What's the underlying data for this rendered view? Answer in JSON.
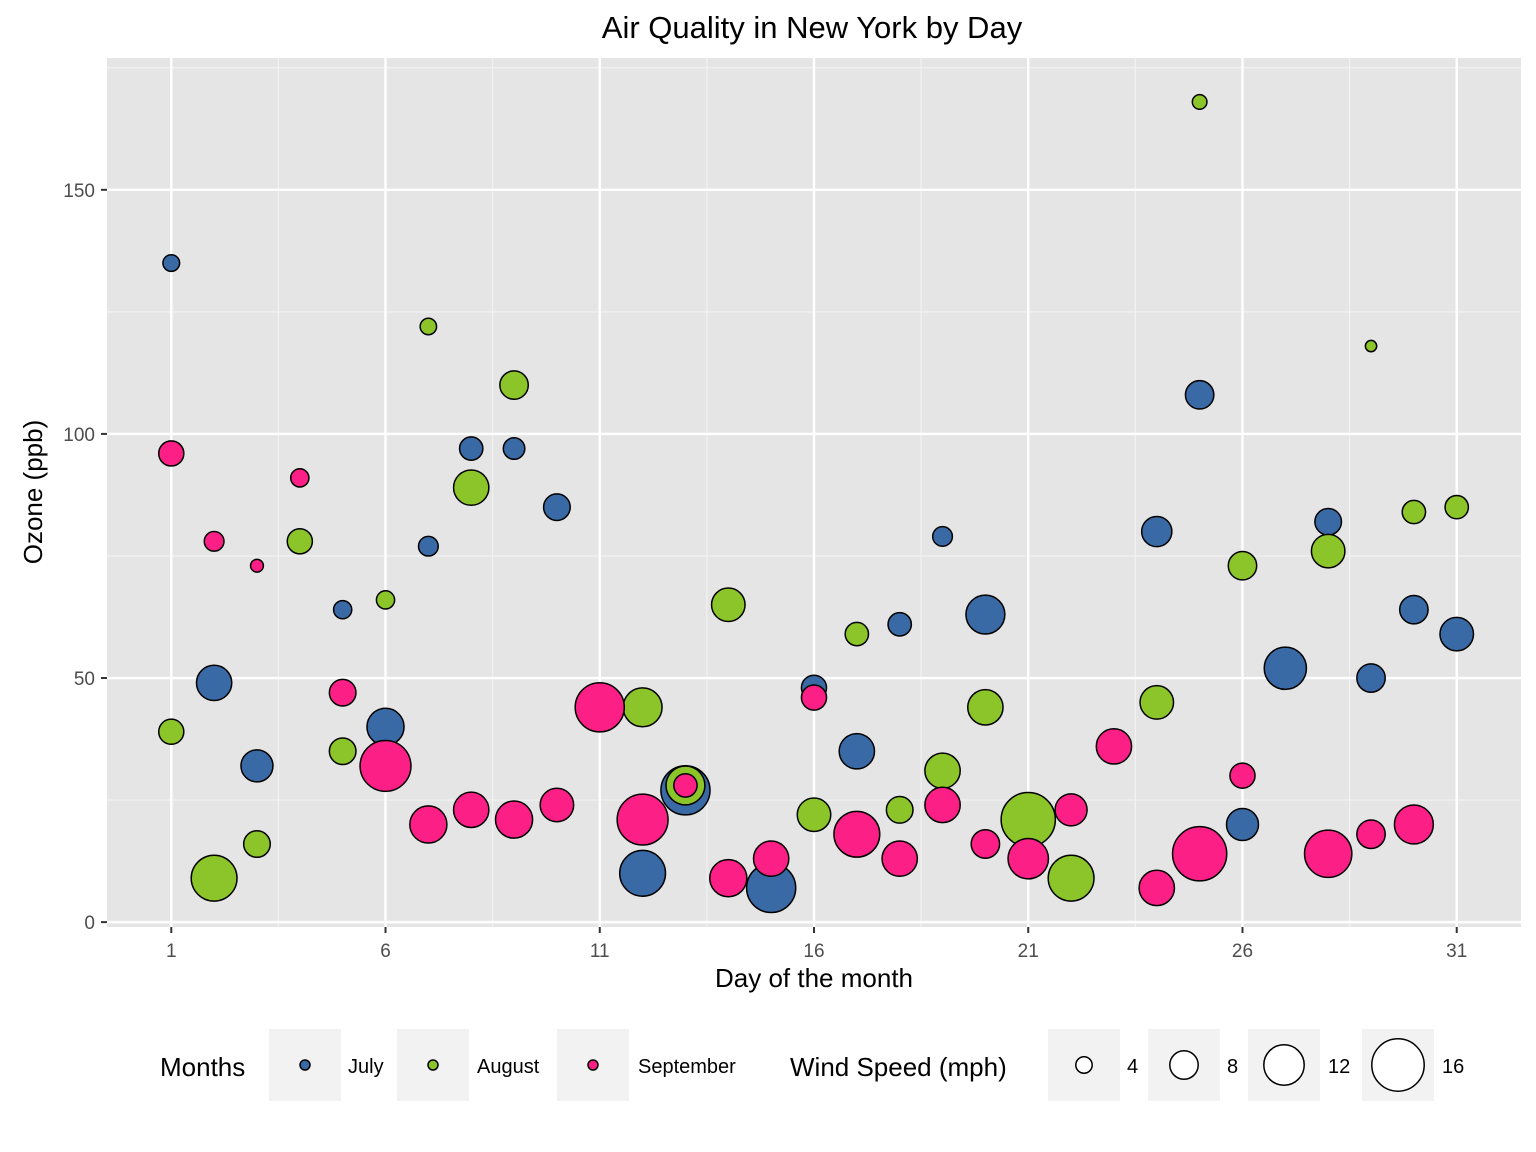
{
  "chart_data": {
    "type": "scatter",
    "title": "Air Quality in New York by Day",
    "xlabel": "Day of the month",
    "ylabel": "Ozone (ppb)",
    "xlim": [
      -0.5,
      32.5
    ],
    "ylim": [
      -1,
      177
    ],
    "x_ticks": [
      1,
      6,
      11,
      16,
      21,
      26,
      31
    ],
    "y_ticks": [
      0,
      50,
      100,
      150
    ],
    "grid": true,
    "background": "#e5e5e5",
    "size_variable": "Wind Speed (mph)",
    "series": [
      {
        "name": "July",
        "color": "#3a6aa6",
        "points": [
          {
            "day": 1,
            "ozone": 135,
            "wind": 4.1
          },
          {
            "day": 2,
            "ozone": 49,
            "wind": 10.3
          },
          {
            "day": 3,
            "ozone": 32,
            "wind": 9.2
          },
          {
            "day": 5,
            "ozone": 64,
            "wind": 4.6
          },
          {
            "day": 6,
            "ozone": 40,
            "wind": 10.9
          },
          {
            "day": 7,
            "ozone": 77,
            "wind": 5.1
          },
          {
            "day": 8,
            "ozone": 97,
            "wind": 6.3
          },
          {
            "day": 9,
            "ozone": 97,
            "wind": 5.7
          },
          {
            "day": 10,
            "ozone": 85,
            "wind": 7.4
          },
          {
            "day": 12,
            "ozone": 10,
            "wind": 13.8
          },
          {
            "day": 13,
            "ozone": 27,
            "wind": 14.9
          },
          {
            "day": 15,
            "ozone": 7,
            "wind": 14.9
          },
          {
            "day": 16,
            "ozone": 48,
            "wind": 6.9
          },
          {
            "day": 17,
            "ozone": 35,
            "wind": 10.3
          },
          {
            "day": 18,
            "ozone": 61,
            "wind": 6.3
          },
          {
            "day": 19,
            "ozone": 79,
            "wind": 5.1
          },
          {
            "day": 20,
            "ozone": 63,
            "wind": 11.5
          },
          {
            "day": 24,
            "ozone": 80,
            "wind": 8.6
          },
          {
            "day": 25,
            "ozone": 108,
            "wind": 8.0
          },
          {
            "day": 26,
            "ozone": 20,
            "wind": 9.2
          },
          {
            "day": 27,
            "ozone": 52,
            "wind": 12.6
          },
          {
            "day": 28,
            "ozone": 82,
            "wind": 7.4
          },
          {
            "day": 29,
            "ozone": 50,
            "wind": 8.0
          },
          {
            "day": 30,
            "ozone": 64,
            "wind": 8.0
          },
          {
            "day": 31,
            "ozone": 59,
            "wind": 9.7
          }
        ]
      },
      {
        "name": "August",
        "color": "#8cc52a",
        "points": [
          {
            "day": 1,
            "ozone": 39,
            "wind": 6.9
          },
          {
            "day": 2,
            "ozone": 9,
            "wind": 13.8
          },
          {
            "day": 3,
            "ozone": 16,
            "wind": 7.4
          },
          {
            "day": 4,
            "ozone": 78,
            "wind": 6.9
          },
          {
            "day": 5,
            "ozone": 35,
            "wind": 7.4
          },
          {
            "day": 6,
            "ozone": 66,
            "wind": 4.6
          },
          {
            "day": 7,
            "ozone": 122,
            "wind": 4.0
          },
          {
            "day": 8,
            "ozone": 89,
            "wind": 10.3
          },
          {
            "day": 9,
            "ozone": 110,
            "wind": 8.0
          },
          {
            "day": 12,
            "ozone": 44,
            "wind": 11.5
          },
          {
            "day": 13,
            "ozone": 28,
            "wind": 11.5
          },
          {
            "day": 14,
            "ozone": 65,
            "wind": 9.7
          },
          {
            "day": 16,
            "ozone": 22,
            "wind": 9.7
          },
          {
            "day": 17,
            "ozone": 59,
            "wind": 6.3
          },
          {
            "day": 18,
            "ozone": 23,
            "wind": 7.4
          },
          {
            "day": 19,
            "ozone": 31,
            "wind": 10.3
          },
          {
            "day": 20,
            "ozone": 44,
            "wind": 10.3
          },
          {
            "day": 21,
            "ozone": 21,
            "wind": 16.6
          },
          {
            "day": 22,
            "ozone": 9,
            "wind": 13.8
          },
          {
            "day": 24,
            "ozone": 45,
            "wind": 9.7
          },
          {
            "day": 25,
            "ozone": 168,
            "wind": 3.4
          },
          {
            "day": 26,
            "ozone": 73,
            "wind": 8.0
          },
          {
            "day": 28,
            "ozone": 76,
            "wind": 9.7
          },
          {
            "day": 29,
            "ozone": 118,
            "wind": 2.3
          },
          {
            "day": 30,
            "ozone": 84,
            "wind": 6.3
          },
          {
            "day": 31,
            "ozone": 85,
            "wind": 6.3
          }
        ]
      },
      {
        "name": "September",
        "color": "#fc1f86",
        "points": [
          {
            "day": 1,
            "ozone": 96,
            "wind": 6.9
          },
          {
            "day": 2,
            "ozone": 78,
            "wind": 5.1
          },
          {
            "day": 3,
            "ozone": 73,
            "wind": 2.8
          },
          {
            "day": 4,
            "ozone": 91,
            "wind": 4.6
          },
          {
            "day": 5,
            "ozone": 47,
            "wind": 7.4
          },
          {
            "day": 6,
            "ozone": 32,
            "wind": 15.5
          },
          {
            "day": 7,
            "ozone": 20,
            "wind": 10.9
          },
          {
            "day": 8,
            "ozone": 23,
            "wind": 10.3
          },
          {
            "day": 9,
            "ozone": 21,
            "wind": 10.9
          },
          {
            "day": 10,
            "ozone": 24,
            "wind": 9.7
          },
          {
            "day": 11,
            "ozone": 44,
            "wind": 14.9
          },
          {
            "day": 12,
            "ozone": 21,
            "wind": 15.5
          },
          {
            "day": 13,
            "ozone": 28,
            "wind": 6.3
          },
          {
            "day": 14,
            "ozone": 9,
            "wind": 10.9
          },
          {
            "day": 15,
            "ozone": 13,
            "wind": 10.3
          },
          {
            "day": 16,
            "ozone": 46,
            "wind": 6.9
          },
          {
            "day": 17,
            "ozone": 18,
            "wind": 13.8
          },
          {
            "day": 18,
            "ozone": 13,
            "wind": 10.3
          },
          {
            "day": 19,
            "ozone": 24,
            "wind": 10.3
          },
          {
            "day": 20,
            "ozone": 16,
            "wind": 8.0
          },
          {
            "day": 21,
            "ozone": 13,
            "wind": 12.0
          },
          {
            "day": 22,
            "ozone": 23,
            "wind": 9.2
          },
          {
            "day": 23,
            "ozone": 36,
            "wind": 10.3
          },
          {
            "day": 24,
            "ozone": 7,
            "wind": 10.3
          },
          {
            "day": 25,
            "ozone": 14,
            "wind": 16.6
          },
          {
            "day": 26,
            "ozone": 30,
            "wind": 6.9
          },
          {
            "day": 28,
            "ozone": 14,
            "wind": 14.3
          },
          {
            "day": 29,
            "ozone": 18,
            "wind": 8.0
          },
          {
            "day": 30,
            "ozone": 20,
            "wind": 11.5
          }
        ]
      }
    ],
    "legend": {
      "placement": "bottom",
      "color_title": "Months",
      "size_title": "Wind Speed (mph)",
      "size_breaks": [
        4,
        8,
        12,
        16
      ]
    }
  }
}
